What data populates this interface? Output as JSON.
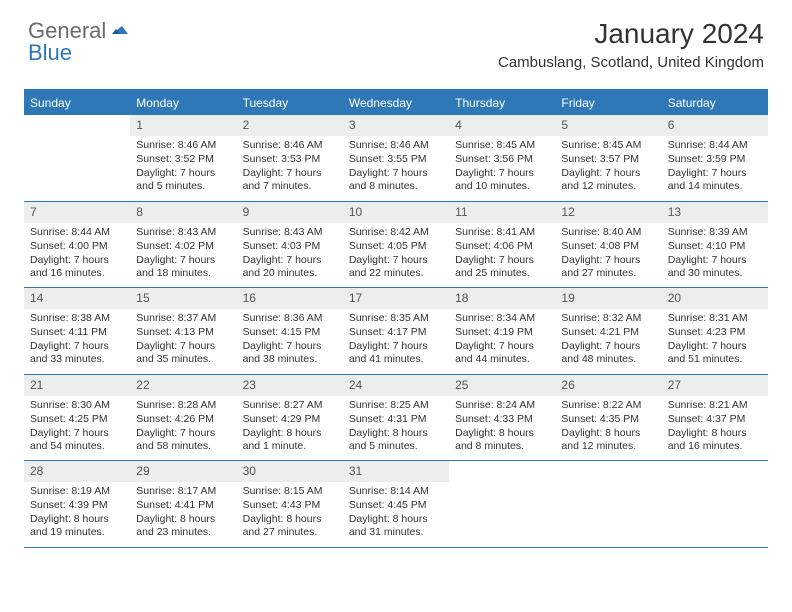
{
  "logo": {
    "part1": "General",
    "part2": "Blue"
  },
  "title": "January 2024",
  "location": "Cambuslang, Scotland, United Kingdom",
  "colors": {
    "accent": "#2f78b8",
    "header_bg": "#2f78b8",
    "header_text": "#ffffff",
    "daynum_bg": "#eceded",
    "text": "#333333",
    "logo_gray": "#6b6b6b"
  },
  "day_headers": [
    "Sunday",
    "Monday",
    "Tuesday",
    "Wednesday",
    "Thursday",
    "Friday",
    "Saturday"
  ],
  "weeks": [
    [
      {
        "n": "",
        "sunrise": "",
        "sunset": "",
        "daylight": ""
      },
      {
        "n": "1",
        "sunrise": "Sunrise: 8:46 AM",
        "sunset": "Sunset: 3:52 PM",
        "daylight": "Daylight: 7 hours and 5 minutes."
      },
      {
        "n": "2",
        "sunrise": "Sunrise: 8:46 AM",
        "sunset": "Sunset: 3:53 PM",
        "daylight": "Daylight: 7 hours and 7 minutes."
      },
      {
        "n": "3",
        "sunrise": "Sunrise: 8:46 AM",
        "sunset": "Sunset: 3:55 PM",
        "daylight": "Daylight: 7 hours and 8 minutes."
      },
      {
        "n": "4",
        "sunrise": "Sunrise: 8:45 AM",
        "sunset": "Sunset: 3:56 PM",
        "daylight": "Daylight: 7 hours and 10 minutes."
      },
      {
        "n": "5",
        "sunrise": "Sunrise: 8:45 AM",
        "sunset": "Sunset: 3:57 PM",
        "daylight": "Daylight: 7 hours and 12 minutes."
      },
      {
        "n": "6",
        "sunrise": "Sunrise: 8:44 AM",
        "sunset": "Sunset: 3:59 PM",
        "daylight": "Daylight: 7 hours and 14 minutes."
      }
    ],
    [
      {
        "n": "7",
        "sunrise": "Sunrise: 8:44 AM",
        "sunset": "Sunset: 4:00 PM",
        "daylight": "Daylight: 7 hours and 16 minutes."
      },
      {
        "n": "8",
        "sunrise": "Sunrise: 8:43 AM",
        "sunset": "Sunset: 4:02 PM",
        "daylight": "Daylight: 7 hours and 18 minutes."
      },
      {
        "n": "9",
        "sunrise": "Sunrise: 8:43 AM",
        "sunset": "Sunset: 4:03 PM",
        "daylight": "Daylight: 7 hours and 20 minutes."
      },
      {
        "n": "10",
        "sunrise": "Sunrise: 8:42 AM",
        "sunset": "Sunset: 4:05 PM",
        "daylight": "Daylight: 7 hours and 22 minutes."
      },
      {
        "n": "11",
        "sunrise": "Sunrise: 8:41 AM",
        "sunset": "Sunset: 4:06 PM",
        "daylight": "Daylight: 7 hours and 25 minutes."
      },
      {
        "n": "12",
        "sunrise": "Sunrise: 8:40 AM",
        "sunset": "Sunset: 4:08 PM",
        "daylight": "Daylight: 7 hours and 27 minutes."
      },
      {
        "n": "13",
        "sunrise": "Sunrise: 8:39 AM",
        "sunset": "Sunset: 4:10 PM",
        "daylight": "Daylight: 7 hours and 30 minutes."
      }
    ],
    [
      {
        "n": "14",
        "sunrise": "Sunrise: 8:38 AM",
        "sunset": "Sunset: 4:11 PM",
        "daylight": "Daylight: 7 hours and 33 minutes."
      },
      {
        "n": "15",
        "sunrise": "Sunrise: 8:37 AM",
        "sunset": "Sunset: 4:13 PM",
        "daylight": "Daylight: 7 hours and 35 minutes."
      },
      {
        "n": "16",
        "sunrise": "Sunrise: 8:36 AM",
        "sunset": "Sunset: 4:15 PM",
        "daylight": "Daylight: 7 hours and 38 minutes."
      },
      {
        "n": "17",
        "sunrise": "Sunrise: 8:35 AM",
        "sunset": "Sunset: 4:17 PM",
        "daylight": "Daylight: 7 hours and 41 minutes."
      },
      {
        "n": "18",
        "sunrise": "Sunrise: 8:34 AM",
        "sunset": "Sunset: 4:19 PM",
        "daylight": "Daylight: 7 hours and 44 minutes."
      },
      {
        "n": "19",
        "sunrise": "Sunrise: 8:32 AM",
        "sunset": "Sunset: 4:21 PM",
        "daylight": "Daylight: 7 hours and 48 minutes."
      },
      {
        "n": "20",
        "sunrise": "Sunrise: 8:31 AM",
        "sunset": "Sunset: 4:23 PM",
        "daylight": "Daylight: 7 hours and 51 minutes."
      }
    ],
    [
      {
        "n": "21",
        "sunrise": "Sunrise: 8:30 AM",
        "sunset": "Sunset: 4:25 PM",
        "daylight": "Daylight: 7 hours and 54 minutes."
      },
      {
        "n": "22",
        "sunrise": "Sunrise: 8:28 AM",
        "sunset": "Sunset: 4:26 PM",
        "daylight": "Daylight: 7 hours and 58 minutes."
      },
      {
        "n": "23",
        "sunrise": "Sunrise: 8:27 AM",
        "sunset": "Sunset: 4:29 PM",
        "daylight": "Daylight: 8 hours and 1 minute."
      },
      {
        "n": "24",
        "sunrise": "Sunrise: 8:25 AM",
        "sunset": "Sunset: 4:31 PM",
        "daylight": "Daylight: 8 hours and 5 minutes."
      },
      {
        "n": "25",
        "sunrise": "Sunrise: 8:24 AM",
        "sunset": "Sunset: 4:33 PM",
        "daylight": "Daylight: 8 hours and 8 minutes."
      },
      {
        "n": "26",
        "sunrise": "Sunrise: 8:22 AM",
        "sunset": "Sunset: 4:35 PM",
        "daylight": "Daylight: 8 hours and 12 minutes."
      },
      {
        "n": "27",
        "sunrise": "Sunrise: 8:21 AM",
        "sunset": "Sunset: 4:37 PM",
        "daylight": "Daylight: 8 hours and 16 minutes."
      }
    ],
    [
      {
        "n": "28",
        "sunrise": "Sunrise: 8:19 AM",
        "sunset": "Sunset: 4:39 PM",
        "daylight": "Daylight: 8 hours and 19 minutes."
      },
      {
        "n": "29",
        "sunrise": "Sunrise: 8:17 AM",
        "sunset": "Sunset: 4:41 PM",
        "daylight": "Daylight: 8 hours and 23 minutes."
      },
      {
        "n": "30",
        "sunrise": "Sunrise: 8:15 AM",
        "sunset": "Sunset: 4:43 PM",
        "daylight": "Daylight: 8 hours and 27 minutes."
      },
      {
        "n": "31",
        "sunrise": "Sunrise: 8:14 AM",
        "sunset": "Sunset: 4:45 PM",
        "daylight": "Daylight: 8 hours and 31 minutes."
      },
      {
        "n": "",
        "sunrise": "",
        "sunset": "",
        "daylight": ""
      },
      {
        "n": "",
        "sunrise": "",
        "sunset": "",
        "daylight": ""
      },
      {
        "n": "",
        "sunrise": "",
        "sunset": "",
        "daylight": ""
      }
    ]
  ]
}
